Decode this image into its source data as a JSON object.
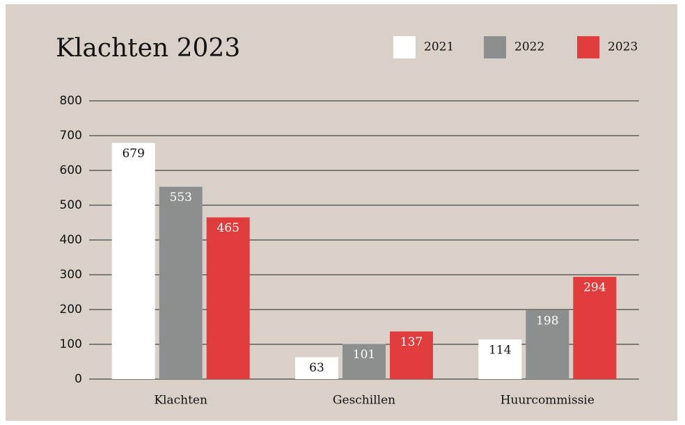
{
  "chart_data": {
    "type": "bar",
    "title": "Klachten 2023",
    "categories": [
      "Klachten",
      "Geschillen",
      "Huurcommissie"
    ],
    "series": [
      {
        "name": "2021",
        "color": "#ffffff",
        "values": [
          679,
          63,
          114
        ]
      },
      {
        "name": "2022",
        "color": "#8b908f",
        "values": [
          553,
          101,
          198
        ]
      },
      {
        "name": "2023",
        "color": "#e23d3d",
        "values": [
          465,
          137,
          294
        ]
      }
    ],
    "ylim": [
      0,
      800
    ],
    "yticks": [
      0,
      100,
      200,
      300,
      400,
      500,
      600,
      700,
      800
    ],
    "grid": true,
    "legend": "top-right"
  }
}
